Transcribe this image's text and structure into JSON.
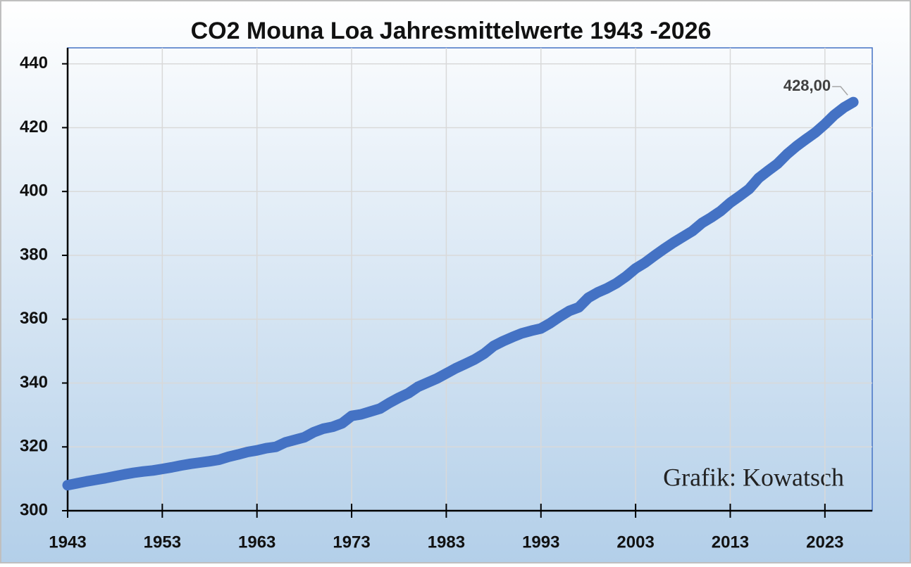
{
  "chart_data": {
    "type": "line",
    "title": "CO2 Mouna Loa Jahresmittelwerte 1943 -2026",
    "annotation": "Grafik: Kowatsch",
    "x": [
      1943,
      1944,
      1945,
      1946,
      1947,
      1948,
      1949,
      1950,
      1951,
      1952,
      1953,
      1954,
      1955,
      1956,
      1957,
      1958,
      1959,
      1960,
      1961,
      1962,
      1963,
      1964,
      1965,
      1966,
      1967,
      1968,
      1969,
      1970,
      1971,
      1972,
      1973,
      1974,
      1975,
      1976,
      1977,
      1978,
      1979,
      1980,
      1981,
      1982,
      1983,
      1984,
      1985,
      1986,
      1987,
      1988,
      1989,
      1990,
      1991,
      1992,
      1993,
      1994,
      1995,
      1996,
      1997,
      1998,
      1999,
      2000,
      2001,
      2002,
      2003,
      2004,
      2005,
      2006,
      2007,
      2008,
      2009,
      2010,
      2011,
      2012,
      2013,
      2014,
      2015,
      2016,
      2017,
      2018,
      2019,
      2020,
      2021,
      2022,
      2023,
      2024,
      2025,
      2026
    ],
    "values": [
      308.0,
      308.6,
      309.2,
      309.7,
      310.2,
      310.8,
      311.4,
      311.9,
      312.3,
      312.6,
      313.1,
      313.6,
      314.2,
      314.7,
      315.1,
      315.5,
      315.98,
      316.9,
      317.6,
      318.4,
      318.9,
      319.6,
      320.0,
      321.4,
      322.2,
      323.0,
      324.6,
      325.7,
      326.3,
      327.4,
      329.7,
      330.2,
      331.1,
      332.0,
      333.8,
      335.4,
      336.8,
      338.8,
      340.1,
      341.4,
      343.0,
      344.6,
      346.0,
      347.4,
      349.2,
      351.6,
      353.1,
      354.4,
      355.6,
      356.4,
      357.1,
      358.8,
      360.8,
      362.6,
      363.7,
      366.7,
      368.4,
      369.7,
      371.3,
      373.4,
      375.9,
      377.7,
      379.9,
      382.0,
      384.0,
      385.8,
      387.6,
      390.1,
      391.9,
      393.9,
      396.5,
      398.6,
      400.8,
      404.2,
      406.5,
      408.7,
      411.7,
      414.2,
      416.4,
      418.5,
      421.1,
      424.0,
      426.3,
      428.0
    ],
    "value_labels": [
      null,
      null,
      null,
      null,
      null,
      null,
      null,
      null,
      null,
      null,
      null,
      null,
      null,
      null,
      null,
      null,
      null,
      null,
      null,
      null,
      null,
      null,
      null,
      null,
      null,
      null,
      null,
      null,
      null,
      null,
      null,
      null,
      null,
      null,
      null,
      null,
      null,
      null,
      null,
      null,
      null,
      null,
      null,
      null,
      null,
      null,
      null,
      null,
      null,
      null,
      null,
      null,
      null,
      null,
      null,
      null,
      null,
      null,
      null,
      null,
      null,
      null,
      null,
      null,
      null,
      null,
      null,
      null,
      null,
      null,
      null,
      null,
      null,
      null,
      null,
      null,
      null,
      null,
      null,
      null,
      null,
      null,
      null,
      "428,00"
    ],
    "color": "#4472c4",
    "xlim": [
      1943,
      2028
    ],
    "xticks": [
      1943,
      1953,
      1963,
      1973,
      1983,
      1993,
      2003,
      2013,
      2023
    ],
    "ylim": [
      300,
      445
    ],
    "yticks": [
      300,
      320,
      340,
      360,
      380,
      400,
      420,
      440
    ],
    "grid": true
  }
}
